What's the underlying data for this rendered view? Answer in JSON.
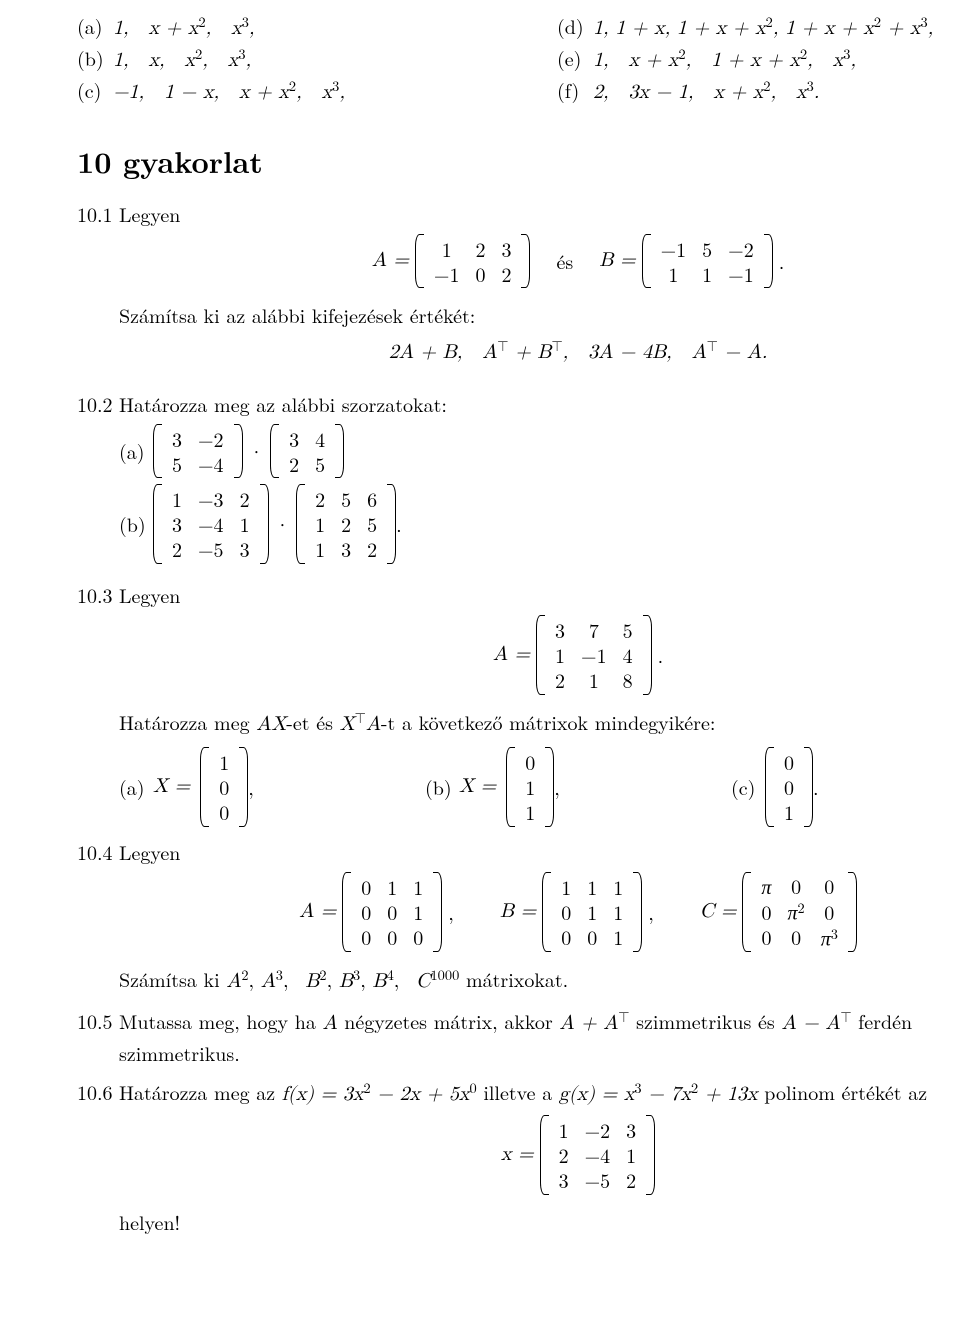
{
  "prev": {
    "a": {
      "label": "(a)",
      "txt": "1,   x + x²,   x³,"
    },
    "b": {
      "label": "(b)",
      "txt": "1,   x,   x²,   x³,"
    },
    "c": {
      "label": "(c)",
      "txt": "−1,   1 − x,   x + x²,   x³,"
    },
    "d": {
      "label": "(d)",
      "txt": "1, 1 + x, 1 + x + x², 1 + x + x² + x³,"
    },
    "e": {
      "label": "(e)",
      "txt": "1,   x + x²,   1 + x + x²,   x³,"
    },
    "f": {
      "label": "(f)",
      "txt": "2,   3x − 1,   x + x²,   x³."
    }
  },
  "section_title": "10    gyakorlat",
  "ex1": {
    "num": "10.1",
    "word_legyen": "Legyen",
    "A_eq": "A =",
    "A": [
      [
        "1",
        "2",
        "3"
      ],
      [
        "−1",
        "0",
        "2"
      ]
    ],
    "es": "és",
    "B_eq": "B =",
    "B": [
      [
        "−1",
        "5",
        "−2"
      ],
      [
        "1",
        "1",
        "−1"
      ]
    ],
    "dot": ".",
    "line2": "Számítsa ki az alábbi kifejezések értékét:",
    "expr": "2A + B,   Aᵀ + Bᵀ,   3A − 4B,   Aᵀ − A."
  },
  "ex2": {
    "num": "10.2",
    "lead": "Határozza meg az alábbi szorzatokat:",
    "a": {
      "label": "(a)",
      "M1": [
        [
          "3",
          "−2"
        ],
        [
          "5",
          "−4"
        ]
      ],
      "M2": [
        [
          "3",
          "4"
        ],
        [
          "2",
          "5"
        ]
      ]
    },
    "b": {
      "label": "(b)",
      "M1": [
        [
          "1",
          "−3",
          "2"
        ],
        [
          "3",
          "−4",
          "1"
        ],
        [
          "2",
          "−5",
          "3"
        ]
      ],
      "M2": [
        [
          "2",
          "5",
          "6"
        ],
        [
          "1",
          "2",
          "5"
        ],
        [
          "1",
          "3",
          "2"
        ]
      ],
      "dot": "."
    }
  },
  "ex3": {
    "num": "10.3",
    "word_legyen": "Legyen",
    "A_eq": "A =",
    "A": [
      [
        "3",
        "7",
        "5"
      ],
      [
        "1",
        "−1",
        "4"
      ],
      [
        "2",
        "1",
        "8"
      ]
    ],
    "dot": ".",
    "line2": "Határozza meg AX-et és XᵀA-t a következő mátrixok mindegyikére:",
    "a": {
      "label": "(a)",
      "lhs": "X =",
      "V": [
        [
          "1"
        ],
        [
          "0"
        ],
        [
          "0"
        ]
      ],
      "trail": ","
    },
    "b": {
      "label": "(b)",
      "lhs": "X =",
      "V": [
        [
          "0"
        ],
        [
          "1"
        ],
        [
          "1"
        ]
      ],
      "trail": ","
    },
    "c": {
      "label": "(c)",
      "V": [
        [
          "0"
        ],
        [
          "0"
        ],
        [
          "1"
        ]
      ],
      "trail": "."
    }
  },
  "ex4": {
    "num": "10.4",
    "word_legyen": "Legyen",
    "A_eq": "A =",
    "A": [
      [
        "0",
        "1",
        "1"
      ],
      [
        "0",
        "0",
        "1"
      ],
      [
        "0",
        "0",
        "0"
      ]
    ],
    "Acomma": ",",
    "B_eq": "B =",
    "B": [
      [
        "1",
        "1",
        "1"
      ],
      [
        "0",
        "1",
        "1"
      ],
      [
        "0",
        "0",
        "1"
      ]
    ],
    "Bcomma": ",",
    "C_eq": "C =",
    "C": [
      [
        "π",
        "0",
        "0"
      ],
      [
        "0",
        "π²",
        "0"
      ],
      [
        "0",
        "0",
        "π³"
      ]
    ],
    "line2": "Számítsa ki A², A³,  B², B³, B⁴,  C¹⁰⁰⁰ mátrixokat."
  },
  "ex5": {
    "num": "10.5",
    "txt": "Mutassa meg, hogy ha A négyzetes mátrix, akkor A + Aᵀ szimmetrikus és A − Aᵀ ferdén szimmetrikus."
  },
  "ex6": {
    "num": "10.6",
    "lead": "Határozza meg az f(x) = 3x² − 2x + 5x⁰ illetve a g(x) = x³ − 7x² + 13x polinom értékét az",
    "x_eq": "x =",
    "M": [
      [
        "1",
        "−2",
        "3"
      ],
      [
        "2",
        "−4",
        "1"
      ],
      [
        "3",
        "−5",
        "2"
      ]
    ],
    "trail": "helyen!"
  }
}
